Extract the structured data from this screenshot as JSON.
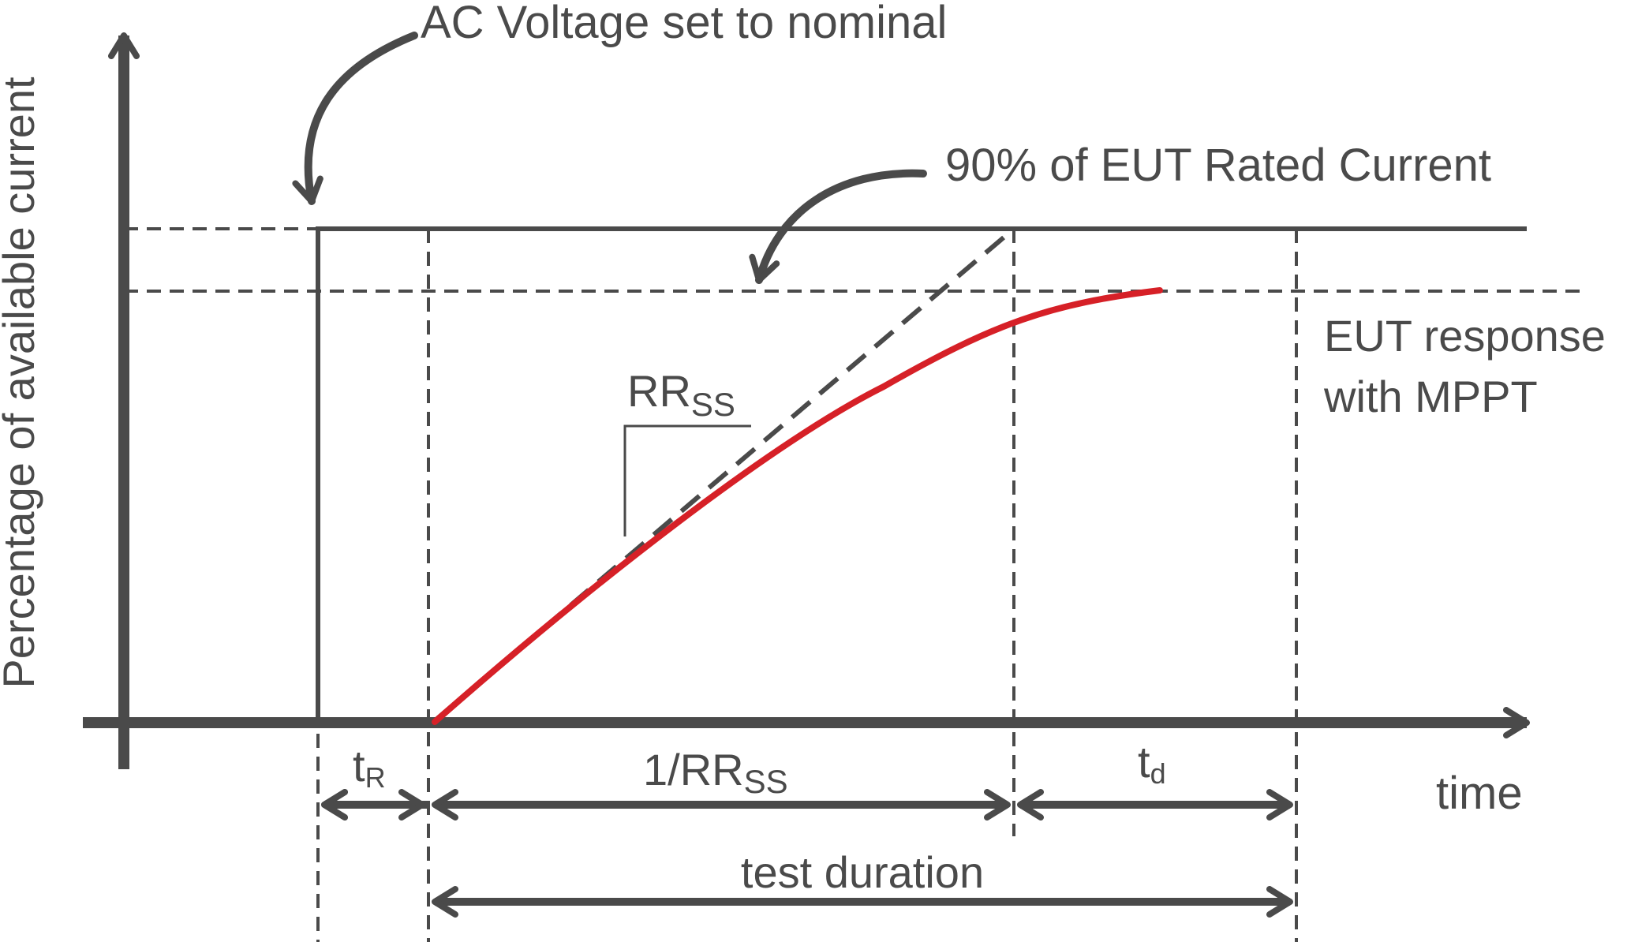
{
  "labels": {
    "y_axis": "Percentage of available current",
    "x_axis": "time",
    "ac_voltage": "AC Voltage set to nominal",
    "rated_current": "90% of EUT Rated Current",
    "eut_response_line1": "EUT response",
    "eut_response_line2": "with MPPT",
    "rr_main": "RR",
    "rr_sub": "SS",
    "tr_main": "t",
    "tr_sub": "R",
    "inv_rr_main": "1/RR",
    "inv_rr_sub": "SS",
    "td_main": "t",
    "td_sub": "d",
    "test_duration": "test duration"
  },
  "colors": {
    "ink": "#4a4a4a",
    "response_curve": "#d62027"
  }
}
